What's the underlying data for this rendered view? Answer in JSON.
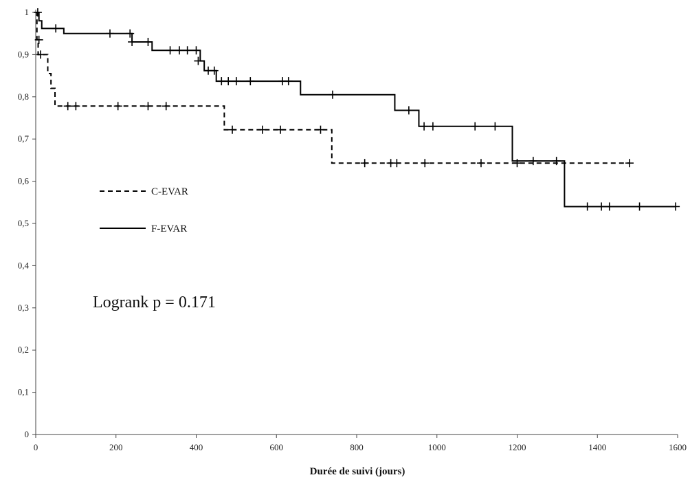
{
  "chart_data": {
    "type": "line",
    "subtype": "kaplan-meier step",
    "xlabel": "Durée de suivi (jours)",
    "ylabel": "",
    "xlim": [
      0,
      1600
    ],
    "ylim": [
      0,
      1
    ],
    "x_ticks": [
      "0",
      "200",
      "400",
      "600",
      "800",
      "1000",
      "1200",
      "1400",
      "1600"
    ],
    "y_ticks": [
      "0",
      "0,1",
      "0,2",
      "0,3",
      "0,4",
      "0,5",
      "0,6",
      "0,7",
      "0,8",
      "0,9",
      "1"
    ],
    "grid": false,
    "legend_position": "left",
    "annotation": "Logrank p = 0.171",
    "series": [
      {
        "name": "C-EVAR",
        "style": "dashed",
        "color": "#000000",
        "steps": [
          [
            0,
            1.0
          ],
          [
            3,
            0.935
          ],
          [
            6,
            0.9
          ],
          [
            30,
            0.855
          ],
          [
            38,
            0.82
          ],
          [
            48,
            0.778
          ],
          [
            470,
            0.722
          ],
          [
            738,
            0.643
          ],
          [
            1480,
            0.643
          ]
        ],
        "censored": [
          [
            5,
            1.0
          ],
          [
            8,
            0.935
          ],
          [
            12,
            0.9
          ],
          [
            80,
            0.778
          ],
          [
            100,
            0.778
          ],
          [
            205,
            0.778
          ],
          [
            280,
            0.778
          ],
          [
            325,
            0.778
          ],
          [
            490,
            0.722
          ],
          [
            565,
            0.722
          ],
          [
            610,
            0.722
          ],
          [
            710,
            0.722
          ],
          [
            820,
            0.643
          ],
          [
            885,
            0.643
          ],
          [
            900,
            0.643
          ],
          [
            970,
            0.643
          ],
          [
            1110,
            0.643
          ],
          [
            1200,
            0.643
          ],
          [
            1480,
            0.643
          ]
        ]
      },
      {
        "name": "F-EVAR",
        "style": "solid",
        "color": "#000000",
        "steps": [
          [
            0,
            1.0
          ],
          [
            8,
            0.98
          ],
          [
            15,
            0.962
          ],
          [
            70,
            0.95
          ],
          [
            240,
            0.93
          ],
          [
            290,
            0.91
          ],
          [
            410,
            0.885
          ],
          [
            420,
            0.862
          ],
          [
            450,
            0.837
          ],
          [
            660,
            0.805
          ],
          [
            895,
            0.768
          ],
          [
            955,
            0.73
          ],
          [
            1188,
            0.648
          ],
          [
            1318,
            0.54
          ],
          [
            1595,
            0.54
          ]
        ],
        "censored": [
          [
            50,
            0.962
          ],
          [
            185,
            0.95
          ],
          [
            235,
            0.95
          ],
          [
            240,
            0.93
          ],
          [
            280,
            0.93
          ],
          [
            335,
            0.91
          ],
          [
            358,
            0.91
          ],
          [
            378,
            0.91
          ],
          [
            400,
            0.91
          ],
          [
            405,
            0.885
          ],
          [
            430,
            0.862
          ],
          [
            445,
            0.862
          ],
          [
            463,
            0.837
          ],
          [
            480,
            0.837
          ],
          [
            500,
            0.837
          ],
          [
            535,
            0.837
          ],
          [
            615,
            0.837
          ],
          [
            630,
            0.837
          ],
          [
            740,
            0.805
          ],
          [
            930,
            0.768
          ],
          [
            968,
            0.73
          ],
          [
            990,
            0.73
          ],
          [
            1095,
            0.73
          ],
          [
            1145,
            0.73
          ],
          [
            1240,
            0.648
          ],
          [
            1298,
            0.648
          ],
          [
            1375,
            0.54
          ],
          [
            1410,
            0.54
          ],
          [
            1430,
            0.54
          ],
          [
            1505,
            0.54
          ],
          [
            1595,
            0.54
          ]
        ]
      }
    ]
  }
}
